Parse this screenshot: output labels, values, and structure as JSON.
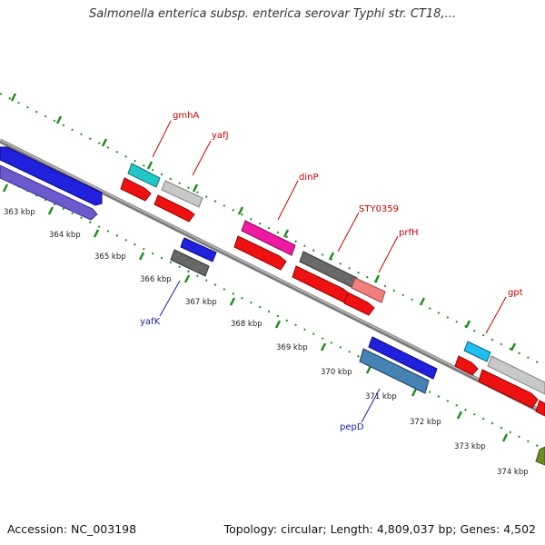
{
  "title": "Salmonella enterica subsp. enterica serovar Typhi str. CT18,...",
  "footer": {
    "accession": "Accession: NC_003198",
    "topology": "Topology: circular; Length: 4,809,037 bp; Genes: 4,502"
  },
  "colors": {
    "forward_label": "#cc0000",
    "reverse_label": "#1a1aaa",
    "cds": "#ee1111",
    "backbone": "#888888",
    "tick": "#228b22"
  },
  "ticks": [
    "363 kbp",
    "364 kbp",
    "365 kbp",
    "366 kbp",
    "367 kbp",
    "368 kbp",
    "369 kbp",
    "370 kbp",
    "371 kbp",
    "372 kbp",
    "373 kbp",
    "374 kbp"
  ],
  "gene_labels": {
    "gmhA": "gmhA",
    "yafJ": "yafJ",
    "dinP": "dinP",
    "STY0359": "STY0359",
    "prfH": "prfH",
    "gpt": "gpt",
    "yafK": "yafK",
    "pepD": "pepD"
  }
}
